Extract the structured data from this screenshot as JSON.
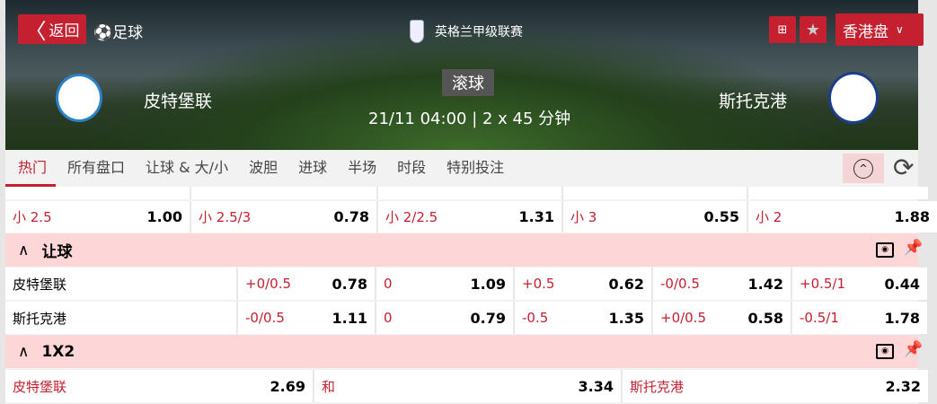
{
  "header": {
    "back_label": "返回",
    "sport": "足球",
    "league": "英格兰甲级联赛",
    "odds_format": "香港盘",
    "status": "滚球",
    "datetime": "21/11 04:00",
    "duration": "2 x 45 分钟",
    "home": "皮特堡联",
    "away": "斯托克港"
  },
  "icons": [
    "chevron-left-icon",
    "soccer-ball-icon",
    "pitch-icon",
    "star-icon",
    "chevron-down-icon",
    "collapse-up-icon",
    "refresh-icon",
    "tv-icon",
    "pin-icon"
  ],
  "colors": {
    "accent": "#c4202f",
    "section_bg": "#fdd7d8"
  },
  "tabs": [
    "热门",
    "所有盘口",
    "让球 & 大/小",
    "波胆",
    "进球",
    "半场",
    "时段",
    "特别投注"
  ],
  "over_under_row": [
    {
      "line": "小 2.5",
      "odds": "1.00"
    },
    {
      "line": "小 2.5/3",
      "odds": "0.78"
    },
    {
      "line": "小 2/2.5",
      "odds": "1.31"
    },
    {
      "line": "小 3",
      "odds": "0.55"
    },
    {
      "line": "小 2",
      "odds": "1.88"
    }
  ],
  "handicap": {
    "title": "让球",
    "rows": [
      {
        "team": "皮特堡联",
        "cells": [
          {
            "line": "+0/0.5",
            "odds": "0.78"
          },
          {
            "line": "0",
            "odds": "1.09"
          },
          {
            "line": "+0.5",
            "odds": "0.62"
          },
          {
            "line": "-0/0.5",
            "odds": "1.42"
          },
          {
            "line": "+0.5/1",
            "odds": "0.44"
          }
        ]
      },
      {
        "team": "斯托克港",
        "cells": [
          {
            "line": "-0/0.5",
            "odds": "1.11"
          },
          {
            "line": "0",
            "odds": "0.79"
          },
          {
            "line": "-0.5",
            "odds": "1.35"
          },
          {
            "line": "+0/0.5",
            "odds": "0.58"
          },
          {
            "line": "-0.5/1",
            "odds": "1.78"
          }
        ]
      }
    ]
  },
  "x12": {
    "title": "1X2",
    "cells": [
      {
        "label": "皮特堡联",
        "odds": "2.69"
      },
      {
        "label": "和",
        "odds": "3.34"
      },
      {
        "label": "斯托克港",
        "odds": "2.32"
      }
    ]
  }
}
